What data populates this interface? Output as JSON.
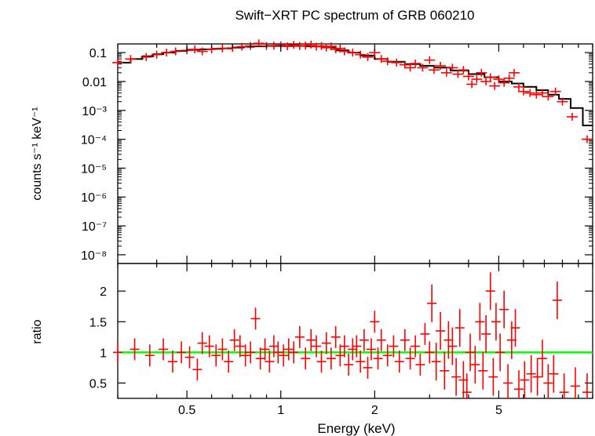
{
  "chart_data": {
    "type": "scatter",
    "title": "Swift−XRT PC spectrum of GRB 060210",
    "xlabel": "Energy (keV)",
    "x_scale": "log",
    "xlim": [
      0.3,
      10
    ],
    "x_ticks": [
      0.5,
      1,
      2,
      5
    ],
    "x_tick_labels": [
      "0.5",
      "1",
      "2",
      "5"
    ],
    "colors": {
      "data": "#ff0000",
      "model": "#000000",
      "unity": "#00ff00"
    },
    "panels": [
      {
        "name": "spectrum",
        "ylabel": "counts s⁻¹ keV⁻¹",
        "y_scale": "log",
        "ylim": [
          5e-09,
          0.2
        ],
        "y_ticks": [
          {
            "value": 0.1,
            "label": "0.1"
          },
          {
            "value": 0.01,
            "label": "0.01"
          },
          {
            "value": 0.001,
            "label": "10⁻³"
          },
          {
            "value": 0.0001,
            "label": "10⁻⁴"
          },
          {
            "value": 1e-05,
            "label": "10⁻⁵"
          },
          {
            "value": 1e-06,
            "label": "10⁻⁶"
          },
          {
            "value": 1e-07,
            "label": "10⁻⁷"
          },
          {
            "value": 1e-08,
            "label": "10⁻⁸"
          }
        ],
        "model": {
          "x": [
            0.3,
            0.33,
            0.36,
            0.39,
            0.42,
            0.46,
            0.5,
            0.55,
            0.6,
            0.65,
            0.7,
            0.76,
            0.82,
            0.9,
            1.0,
            1.1,
            1.2,
            1.35,
            1.5,
            1.65,
            1.8,
            2.0,
            2.2,
            2.5,
            2.8,
            3.1,
            3.5,
            4.0,
            4.5,
            5.0,
            5.5,
            6.0,
            6.6,
            7.2,
            7.8,
            8.5,
            9.3,
            10.0
          ],
          "y": [
            0.045,
            0.06,
            0.075,
            0.088,
            0.1,
            0.115,
            0.125,
            0.13,
            0.135,
            0.14,
            0.15,
            0.16,
            0.165,
            0.17,
            0.17,
            0.17,
            0.165,
            0.15,
            0.12,
            0.1,
            0.08,
            0.06,
            0.048,
            0.04,
            0.035,
            0.03,
            0.024,
            0.018,
            0.014,
            0.01,
            0.0085,
            0.0065,
            0.005,
            0.0035,
            0.0025,
            0.0012,
            0.0003,
            0.0003
          ]
        },
        "points": [
          {
            "x": 0.3,
            "y": 0.045
          },
          {
            "x": 0.33,
            "y": 0.06
          },
          {
            "x": 0.37,
            "y": 0.07
          },
          {
            "x": 0.4,
            "y": 0.085
          },
          {
            "x": 0.43,
            "y": 0.1
          },
          {
            "x": 0.46,
            "y": 0.11
          },
          {
            "x": 0.5,
            "y": 0.12
          },
          {
            "x": 0.53,
            "y": 0.13
          },
          {
            "x": 0.56,
            "y": 0.11
          },
          {
            "x": 0.6,
            "y": 0.13
          },
          {
            "x": 0.65,
            "y": 0.14
          },
          {
            "x": 0.7,
            "y": 0.145
          },
          {
            "x": 0.75,
            "y": 0.16
          },
          {
            "x": 0.8,
            "y": 0.17
          },
          {
            "x": 0.85,
            "y": 0.21
          },
          {
            "x": 0.9,
            "y": 0.17
          },
          {
            "x": 0.95,
            "y": 0.175
          },
          {
            "x": 1.0,
            "y": 0.18
          },
          {
            "x": 1.05,
            "y": 0.165
          },
          {
            "x": 1.1,
            "y": 0.185
          },
          {
            "x": 1.15,
            "y": 0.17
          },
          {
            "x": 1.2,
            "y": 0.175
          },
          {
            "x": 1.25,
            "y": 0.19
          },
          {
            "x": 1.3,
            "y": 0.16
          },
          {
            "x": 1.35,
            "y": 0.17
          },
          {
            "x": 1.4,
            "y": 0.15
          },
          {
            "x": 1.45,
            "y": 0.165
          },
          {
            "x": 1.5,
            "y": 0.13
          },
          {
            "x": 1.55,
            "y": 0.14
          },
          {
            "x": 1.6,
            "y": 0.11
          },
          {
            "x": 1.7,
            "y": 0.1
          },
          {
            "x": 1.8,
            "y": 0.085
          },
          {
            "x": 1.9,
            "y": 0.07
          },
          {
            "x": 2.0,
            "y": 0.1
          },
          {
            "x": 2.1,
            "y": 0.06
          },
          {
            "x": 2.2,
            "y": 0.05
          },
          {
            "x": 2.35,
            "y": 0.045
          },
          {
            "x": 2.5,
            "y": 0.038
          },
          {
            "x": 2.6,
            "y": 0.03
          },
          {
            "x": 2.7,
            "y": 0.042
          },
          {
            "x": 2.85,
            "y": 0.03
          },
          {
            "x": 3.0,
            "y": 0.055
          },
          {
            "x": 3.1,
            "y": 0.025
          },
          {
            "x": 3.25,
            "y": 0.035
          },
          {
            "x": 3.4,
            "y": 0.02
          },
          {
            "x": 3.55,
            "y": 0.03
          },
          {
            "x": 3.7,
            "y": 0.018
          },
          {
            "x": 3.85,
            "y": 0.025
          },
          {
            "x": 4.0,
            "y": 0.015
          },
          {
            "x": 4.1,
            "y": 0.008
          },
          {
            "x": 4.25,
            "y": 0.012
          },
          {
            "x": 4.4,
            "y": 0.02
          },
          {
            "x": 4.55,
            "y": 0.01
          },
          {
            "x": 4.7,
            "y": 0.014
          },
          {
            "x": 4.85,
            "y": 0.007
          },
          {
            "x": 5.0,
            "y": 0.012
          },
          {
            "x": 5.2,
            "y": 0.009
          },
          {
            "x": 5.4,
            "y": 0.013
          },
          {
            "x": 5.6,
            "y": 0.02
          },
          {
            "x": 5.8,
            "y": 0.0065
          },
          {
            "x": 6.0,
            "y": 0.0045
          },
          {
            "x": 6.3,
            "y": 0.004
          },
          {
            "x": 6.6,
            "y": 0.0035
          },
          {
            "x": 6.9,
            "y": 0.004
          },
          {
            "x": 7.2,
            "y": 0.003
          },
          {
            "x": 7.6,
            "y": 0.0045
          },
          {
            "x": 8.0,
            "y": 0.002
          },
          {
            "x": 8.6,
            "y": 0.0006
          },
          {
            "x": 9.6,
            "y": 0.0001
          }
        ]
      },
      {
        "name": "ratio",
        "ylabel": "ratio",
        "y_scale": "linear",
        "ylim": [
          0.25,
          2.45
        ],
        "y_ticks": [
          {
            "value": 0.5,
            "label": "0.5"
          },
          {
            "value": 1,
            "label": "1"
          },
          {
            "value": 1.5,
            "label": "1.5"
          },
          {
            "value": 2,
            "label": "2"
          }
        ],
        "reference": 1,
        "points": [
          {
            "x": 0.3,
            "y": 1.0
          },
          {
            "x": 0.34,
            "y": 1.05
          },
          {
            "x": 0.38,
            "y": 0.95
          },
          {
            "x": 0.42,
            "y": 1.05
          },
          {
            "x": 0.45,
            "y": 0.85
          },
          {
            "x": 0.48,
            "y": 1.0
          },
          {
            "x": 0.51,
            "y": 0.92
          },
          {
            "x": 0.54,
            "y": 0.72
          },
          {
            "x": 0.56,
            "y": 1.15
          },
          {
            "x": 0.59,
            "y": 1.1
          },
          {
            "x": 0.62,
            "y": 0.95
          },
          {
            "x": 0.65,
            "y": 1.05
          },
          {
            "x": 0.68,
            "y": 0.85
          },
          {
            "x": 0.71,
            "y": 1.2
          },
          {
            "x": 0.74,
            "y": 1.1
          },
          {
            "x": 0.77,
            "y": 0.95
          },
          {
            "x": 0.8,
            "y": 1.0
          },
          {
            "x": 0.83,
            "y": 1.55
          },
          {
            "x": 0.86,
            "y": 0.9
          },
          {
            "x": 0.89,
            "y": 1.05
          },
          {
            "x": 0.92,
            "y": 0.85
          },
          {
            "x": 0.95,
            "y": 1.1
          },
          {
            "x": 0.98,
            "y": 1.0
          },
          {
            "x": 1.02,
            "y": 0.95
          },
          {
            "x": 1.06,
            "y": 1.05
          },
          {
            "x": 1.1,
            "y": 1.0
          },
          {
            "x": 1.15,
            "y": 1.25
          },
          {
            "x": 1.2,
            "y": 0.9
          },
          {
            "x": 1.25,
            "y": 1.2
          },
          {
            "x": 1.3,
            "y": 1.1
          },
          {
            "x": 1.35,
            "y": 0.85
          },
          {
            "x": 1.4,
            "y": 1.15
          },
          {
            "x": 1.45,
            "y": 0.9
          },
          {
            "x": 1.5,
            "y": 1.25
          },
          {
            "x": 1.55,
            "y": 0.95
          },
          {
            "x": 1.6,
            "y": 1.1
          },
          {
            "x": 1.65,
            "y": 0.8
          },
          {
            "x": 1.7,
            "y": 1.05
          },
          {
            "x": 1.75,
            "y": 1.1
          },
          {
            "x": 1.8,
            "y": 0.85
          },
          {
            "x": 1.85,
            "y": 1.2
          },
          {
            "x": 1.9,
            "y": 0.75
          },
          {
            "x": 1.95,
            "y": 1.05
          },
          {
            "x": 2.0,
            "y": 1.5
          },
          {
            "x": 2.05,
            "y": 0.9
          },
          {
            "x": 2.1,
            "y": 1.2
          },
          {
            "x": 2.2,
            "y": 0.95
          },
          {
            "x": 2.3,
            "y": 1.1
          },
          {
            "x": 2.4,
            "y": 0.85
          },
          {
            "x": 2.5,
            "y": 1.2
          },
          {
            "x": 2.6,
            "y": 0.9
          },
          {
            "x": 2.7,
            "y": 1.1
          },
          {
            "x": 2.8,
            "y": 0.8
          },
          {
            "x": 2.9,
            "y": 1.3
          },
          {
            "x": 3.0,
            "y": 1.0
          },
          {
            "x": 3.05,
            "y": 1.8
          },
          {
            "x": 3.15,
            "y": 0.85
          },
          {
            "x": 3.25,
            "y": 1.35
          },
          {
            "x": 3.35,
            "y": 0.7
          },
          {
            "x": 3.45,
            "y": 1.2
          },
          {
            "x": 3.55,
            "y": 1.1
          },
          {
            "x": 3.65,
            "y": 0.6
          },
          {
            "x": 3.75,
            "y": 1.4
          },
          {
            "x": 3.85,
            "y": 0.55
          },
          {
            "x": 3.95,
            "y": 0.35
          },
          {
            "x": 4.05,
            "y": 1.0
          },
          {
            "x": 4.2,
            "y": 0.8
          },
          {
            "x": 4.35,
            "y": 1.5
          },
          {
            "x": 4.45,
            "y": 0.7
          },
          {
            "x": 4.55,
            "y": 1.3
          },
          {
            "x": 4.7,
            "y": 2.0
          },
          {
            "x": 4.8,
            "y": 0.6
          },
          {
            "x": 4.9,
            "y": 1.5
          },
          {
            "x": 5.05,
            "y": 1.0
          },
          {
            "x": 5.2,
            "y": 1.7
          },
          {
            "x": 5.35,
            "y": 0.5
          },
          {
            "x": 5.5,
            "y": 1.2
          },
          {
            "x": 5.65,
            "y": 1.4
          },
          {
            "x": 5.8,
            "y": 0.4
          },
          {
            "x": 6.05,
            "y": 0.55
          },
          {
            "x": 6.35,
            "y": 0.65
          },
          {
            "x": 6.65,
            "y": 0.6
          },
          {
            "x": 6.9,
            "y": 0.9
          },
          {
            "x": 7.2,
            "y": 0.5
          },
          {
            "x": 7.5,
            "y": 0.65
          },
          {
            "x": 7.7,
            "y": 1.85
          },
          {
            "x": 8.1,
            "y": 0.35
          },
          {
            "x": 8.8,
            "y": 0.45
          },
          {
            "x": 9.6,
            "y": 0.35
          }
        ]
      }
    ]
  }
}
